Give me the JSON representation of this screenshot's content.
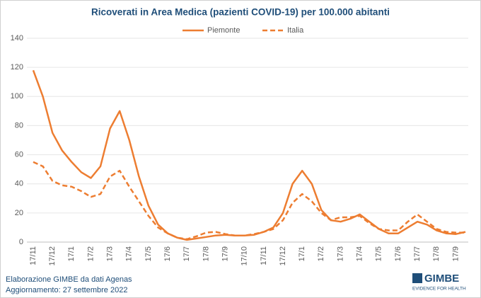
{
  "chart_data": {
    "type": "line",
    "title": "Ricoverati in Area Medica (pazienti COVID-19) per 100.000 abitanti",
    "categories": [
      "17/11",
      null,
      "17/12",
      null,
      "17/1",
      null,
      "17/2",
      null,
      "17/3",
      null,
      "17/4",
      null,
      "17/5",
      null,
      "17/6",
      null,
      "17/7",
      null,
      "17/8",
      null,
      "17/9",
      null,
      "17/10",
      null,
      "17/11",
      null,
      "17/12",
      null,
      "17/1",
      null,
      "17/2",
      null,
      "17/3",
      null,
      "17/4",
      null,
      "17/5",
      null,
      "17/6",
      null,
      "17/7",
      null,
      "17/8",
      null,
      "17/9",
      null
    ],
    "series": [
      {
        "name": "Piemonte",
        "color": "#ed7d31",
        "dash": false,
        "values": [
          118,
          100,
          75,
          63,
          55,
          48,
          44,
          52,
          78,
          90,
          70,
          45,
          25,
          12,
          6,
          3,
          1.5,
          2.5,
          3.5,
          4.5,
          5,
          4.5,
          4.5,
          5,
          7,
          10,
          20,
          40,
          49,
          40,
          22,
          15,
          14,
          16,
          19,
          14,
          9,
          6,
          6,
          10,
          14,
          12,
          8,
          6,
          5.5,
          7
        ]
      },
      {
        "name": "Italia",
        "color": "#ed7d31",
        "dash": true,
        "values": [
          55,
          52,
          42,
          39,
          38,
          35,
          31,
          33,
          45,
          49,
          38,
          28,
          18,
          10,
          6,
          3,
          2,
          4,
          6.5,
          7,
          5.5,
          4.5,
          4.5,
          5.5,
          7,
          9,
          15,
          27,
          33,
          28,
          20,
          15,
          17,
          17,
          18,
          13,
          9,
          8,
          8,
          14,
          19,
          14,
          9,
          7,
          6.5,
          6.5
        ]
      }
    ],
    "ylim": [
      0,
      140
    ],
    "yticks": [
      0,
      20,
      40,
      60,
      80,
      100,
      120,
      140
    ],
    "grid": true,
    "legend": "top"
  },
  "footer": [
    "Elaborazione GIMBE da dati Agenas",
    "Aggiornamento: 27 settembre 2022"
  ],
  "logo": {
    "name": "GIMBE",
    "tagline": "EVIDENCE FOR HEALTH"
  }
}
